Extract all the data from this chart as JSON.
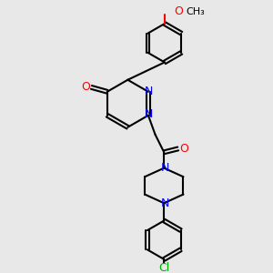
{
  "bg_color": "#e8e8e8",
  "bond_color": "#000000",
  "bond_width": 1.5,
  "atom_colors": {
    "N": "#0000ff",
    "O": "#ff0000",
    "Cl": "#00aa00",
    "C": "#000000"
  },
  "font_size": 9,
  "font_size_small": 8
}
